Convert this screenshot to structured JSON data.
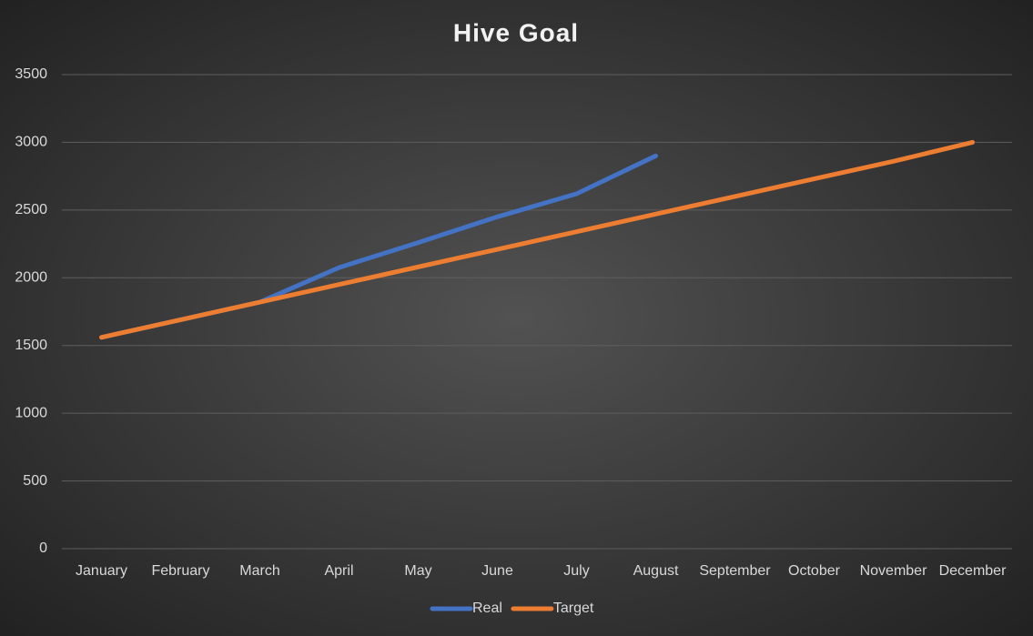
{
  "chart_data": {
    "type": "line",
    "title": "Hive Goal",
    "categories": [
      "January",
      "February",
      "March",
      "April",
      "May",
      "June",
      "July",
      "August",
      "September",
      "October",
      "November",
      "December"
    ],
    "series": [
      {
        "name": "Real",
        "color": "#4472c4",
        "values": [
          1560,
          1690,
          1820,
          2075,
          2260,
          2450,
          2620,
          2900,
          null,
          null,
          null,
          null
        ]
      },
      {
        "name": "Target",
        "color": "#ed7d31",
        "values": [
          1560,
          1690,
          1820,
          1950,
          2080,
          2210,
          2340,
          2470,
          2600,
          2730,
          2860,
          3000
        ]
      }
    ],
    "ylim": [
      0,
      3500
    ],
    "yticks": [
      0,
      500,
      1000,
      1500,
      2000,
      2500,
      3000,
      3500
    ],
    "grid": true,
    "legend": "bottom"
  }
}
